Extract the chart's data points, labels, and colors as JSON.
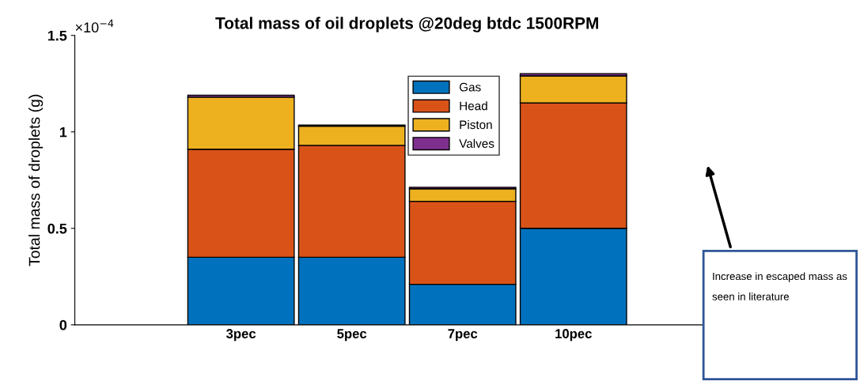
{
  "chart_data": {
    "type": "bar",
    "title": "Total mass of oil droplets @20deg btdc 1500RPM",
    "ylabel": "Total mass of droplets (g)",
    "categories": [
      null,
      "3pec",
      "5pec",
      "7pec",
      "10pec",
      null
    ],
    "stacked": true,
    "series": [
      {
        "name": "Gas",
        "color": "#0072bd",
        "values": [
          null,
          0.35,
          0.35,
          0.21,
          0.5,
          null
        ]
      },
      {
        "name": "Head",
        "color": "#d95319",
        "values": [
          null,
          0.56,
          0.58,
          0.43,
          0.65,
          null
        ]
      },
      {
        "name": "Piston",
        "color": "#edb120",
        "values": [
          null,
          0.27,
          0.1,
          0.065,
          0.14,
          null
        ]
      },
      {
        "name": "Valves",
        "color": "#7e2f8e",
        "values": [
          null,
          0.01,
          0.005,
          0.008,
          0.012,
          null
        ]
      }
    ],
    "ylim": [
      0,
      1.5
    ],
    "yticks": [
      0,
      0.5,
      1,
      1.5
    ],
    "legend": "top",
    "grid": false,
    "annotations": [
      "×10$^{−4}$",
      "Increase in escaped mass as seen in literature"
    ]
  }
}
